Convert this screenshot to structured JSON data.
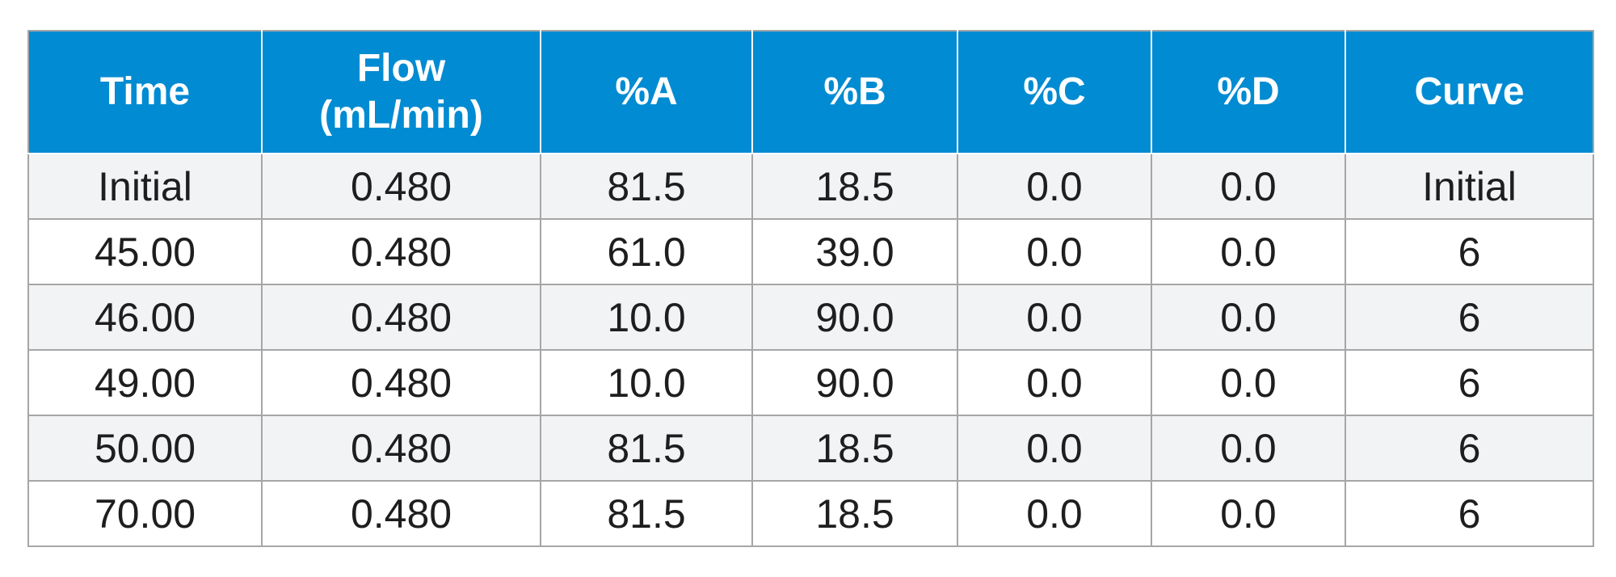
{
  "gradient_table": {
    "headers": [
      {
        "line1": "Time",
        "line2": ""
      },
      {
        "line1": "Flow",
        "line2": "(mL/min)"
      },
      {
        "line1": "%A",
        "line2": ""
      },
      {
        "line1": "%B",
        "line2": ""
      },
      {
        "line1": "%C",
        "line2": ""
      },
      {
        "line1": "%D",
        "line2": ""
      },
      {
        "line1": "Curve",
        "line2": ""
      }
    ],
    "rows": [
      [
        "Initial",
        "0.480",
        "81.5",
        "18.5",
        "0.0",
        "0.0",
        "Initial"
      ],
      [
        "45.00",
        "0.480",
        "61.0",
        "39.0",
        "0.0",
        "0.0",
        "6"
      ],
      [
        "46.00",
        "0.480",
        "10.0",
        "90.0",
        "0.0",
        "0.0",
        "6"
      ],
      [
        "49.00",
        "0.480",
        "10.0",
        "90.0",
        "0.0",
        "0.0",
        "6"
      ],
      [
        "50.00",
        "0.480",
        "81.5",
        "18.5",
        "0.0",
        "0.0",
        "6"
      ],
      [
        "70.00",
        "0.480",
        "81.5",
        "18.5",
        "0.0",
        "0.0",
        "6"
      ]
    ],
    "colors": {
      "header_bg": "#008bd2",
      "header_text": "#ffffff",
      "row_alt_bg": "#f2f3f5",
      "border": "#a6a6a6"
    }
  }
}
